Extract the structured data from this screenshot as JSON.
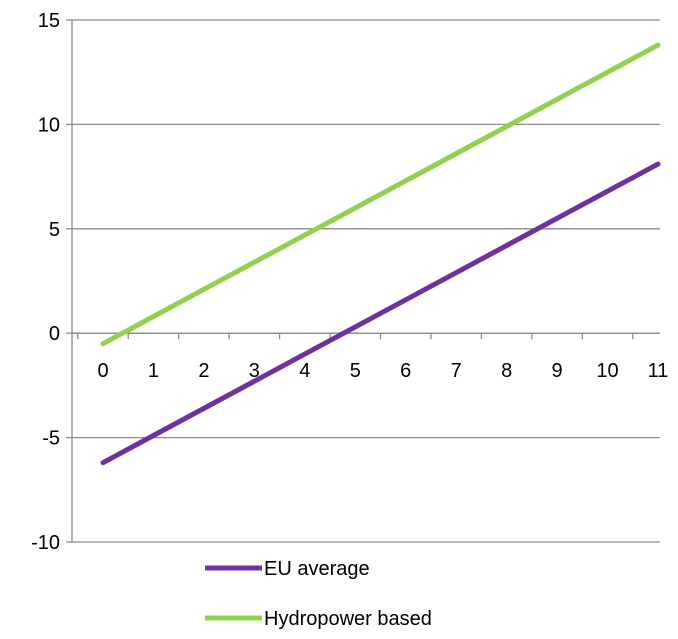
{
  "chart_data": {
    "type": "line",
    "title": "",
    "xlabel": "",
    "ylabel": "",
    "x": [
      0,
      1,
      2,
      3,
      4,
      5,
      6,
      7,
      8,
      9,
      10,
      11
    ],
    "xlim": [
      0,
      11
    ],
    "ylim": [
      -10,
      15
    ],
    "ytick_values": [
      15,
      10,
      5,
      0,
      -5,
      -10
    ],
    "yticks": [
      "15",
      "10",
      "5",
      "0",
      "-5",
      "-10"
    ],
    "xticks": [
      "0",
      "1",
      "2",
      "3",
      "4",
      "5",
      "6",
      "7",
      "8",
      "9",
      "10",
      "11"
    ],
    "grid": "horizontal",
    "series": [
      {
        "name": "EU average",
        "color": "#7030a0",
        "values": [
          -6.2,
          -4.9,
          -3.6,
          -2.3,
          -1.0,
          0.3,
          1.6,
          2.9,
          4.2,
          5.5,
          6.8,
          8.1
        ]
      },
      {
        "name": "Hydropower based",
        "color": "#92d050",
        "values": [
          -0.5,
          0.8,
          2.1,
          3.4,
          4.7,
          6.0,
          7.3,
          8.6,
          9.9,
          11.2,
          12.5,
          13.8
        ]
      }
    ],
    "legend_position": "bottom"
  }
}
